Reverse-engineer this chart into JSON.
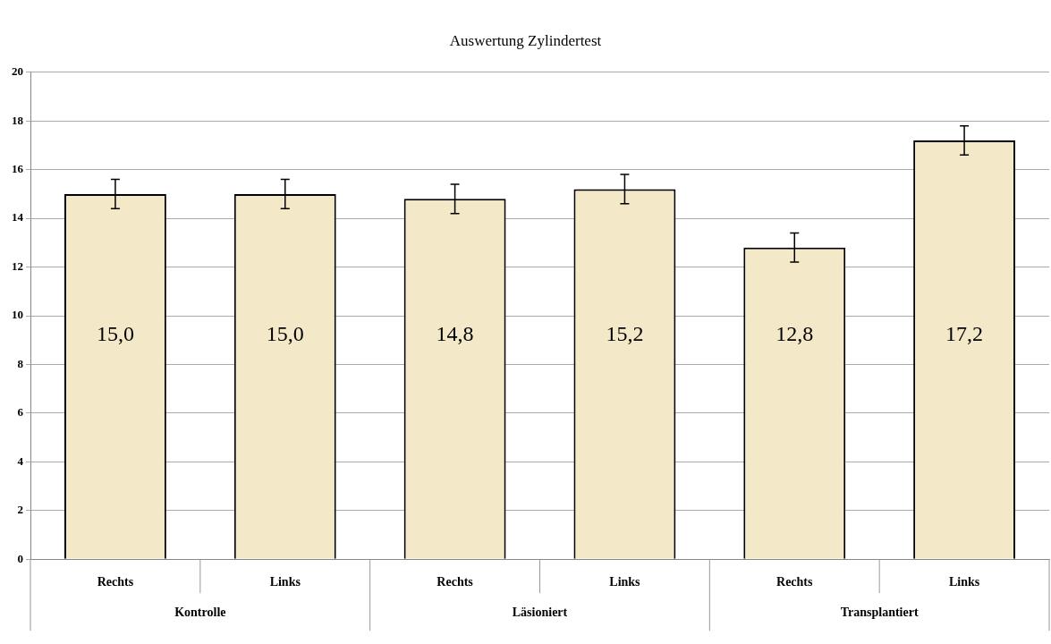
{
  "chart_data": {
    "type": "bar",
    "title": "Auswertung Zylindertest",
    "categories": [
      "Rechts",
      "Links",
      "Rechts",
      "Links",
      "Rechts",
      "Links"
    ],
    "values": [
      15.0,
      15.0,
      14.8,
      15.2,
      12.8,
      17.2
    ],
    "value_labels": [
      "15,0",
      "15,0",
      "14,8",
      "15,2",
      "12,8",
      "17,2"
    ],
    "errors": [
      0.6,
      0.6,
      0.6,
      0.6,
      0.6,
      0.6
    ],
    "color": "#f3e8c8",
    "ylim": [
      0,
      20
    ],
    "yticks": [
      0,
      2,
      4,
      6,
      8,
      10,
      12,
      14,
      16,
      18,
      20
    ],
    "grid": "y",
    "legend": false,
    "annotations": [
      "Kontrolle",
      "Läsioniert",
      "Transplantiert"
    ]
  }
}
